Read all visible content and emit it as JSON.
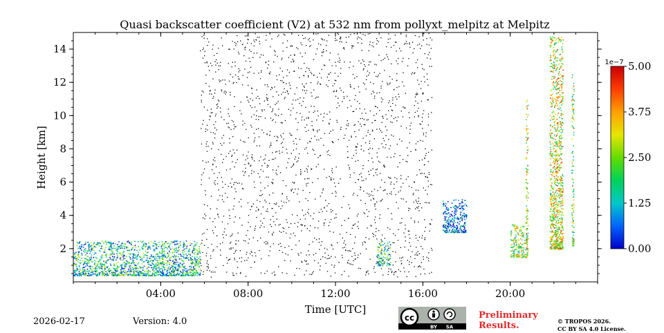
{
  "chart_data": {
    "type": "heatmap",
    "title": "Quasi backscatter coefficient (V2) at 532 nm from pollyxt_melpitz at Melpitz",
    "xlabel": "Time [UTC]",
    "ylabel": "Height [km]",
    "xlim_hours": [
      0,
      24
    ],
    "ylim_km": [
      0,
      15
    ],
    "x_ticks": [
      {
        "hour": 4,
        "label": "04:00"
      },
      {
        "hour": 8,
        "label": "08:00"
      },
      {
        "hour": 12,
        "label": "12:00"
      },
      {
        "hour": 16,
        "label": "16:00"
      },
      {
        "hour": 20,
        "label": "20:00"
      }
    ],
    "y_ticks": [
      {
        "value": 2,
        "label": "2"
      },
      {
        "value": 4,
        "label": "4"
      },
      {
        "value": 6,
        "label": "6"
      },
      {
        "value": 8,
        "label": "8"
      },
      {
        "value": 10,
        "label": "10"
      },
      {
        "value": 12,
        "label": "12"
      },
      {
        "value": 14,
        "label": "14"
      }
    ],
    "colorbar": {
      "range": [
        0.0,
        5.0
      ],
      "scale_label": "1e−7",
      "ticks": [
        {
          "value": 0.0,
          "label": "0.00"
        },
        {
          "value": 1.25,
          "label": "1.25"
        },
        {
          "value": 2.5,
          "label": "2.50"
        },
        {
          "value": 3.75,
          "label": "3.75"
        },
        {
          "value": 5.0,
          "label": "5.00"
        }
      ],
      "colormap": [
        "#0000c8",
        "#0064ff",
        "#00c8c8",
        "#00d25a",
        "#64dc00",
        "#e6e600",
        "#ffa000",
        "#ff3c00",
        "#c80000"
      ]
    },
    "features": [
      {
        "name": "boundary layer aerosol",
        "time_start": 0.0,
        "time_end": 5.8,
        "height_min": 0.4,
        "height_max": 2.5,
        "value": 1.5
      },
      {
        "name": "noise region",
        "time_start": 5.8,
        "time_end": 16.4,
        "height_min": 0.3,
        "height_max": 15.0,
        "value": 0.0
      },
      {
        "name": "aerosol near 14:00",
        "time_start": 13.9,
        "time_end": 14.5,
        "height_min": 1.0,
        "height_max": 2.5,
        "value": 1.5
      },
      {
        "name": "elevated layer",
        "time_start": 16.9,
        "time_end": 18.0,
        "height_min": 3.0,
        "height_max": 5.0,
        "value": 0.5
      },
      {
        "name": "cloud near 20:30",
        "time_start": 20.0,
        "time_end": 20.8,
        "height_min": 1.5,
        "height_max": 3.5,
        "value": 2.5
      },
      {
        "name": "column 20:45",
        "time_start": 20.7,
        "time_end": 20.8,
        "height_min": 2.0,
        "height_max": 11.0,
        "value": 3.0
      },
      {
        "name": "convective column",
        "time_start": 21.8,
        "time_end": 22.4,
        "height_min": 2.0,
        "height_max": 14.8,
        "value": 3.0
      },
      {
        "name": "column 22:45",
        "time_start": 22.8,
        "time_end": 22.9,
        "height_min": 2.2,
        "height_max": 12.5,
        "value": 2.5
      }
    ]
  },
  "footer": {
    "date": "2026-02-17",
    "version": "Version: 4.0",
    "preliminary_line1": "Preliminary",
    "preliminary_line2": "Results.",
    "license_line1": "© TROPOS 2026.",
    "license_line2": "CC BY SA 4.0 License.",
    "badge_by": "BY",
    "badge_sa": "SA"
  }
}
